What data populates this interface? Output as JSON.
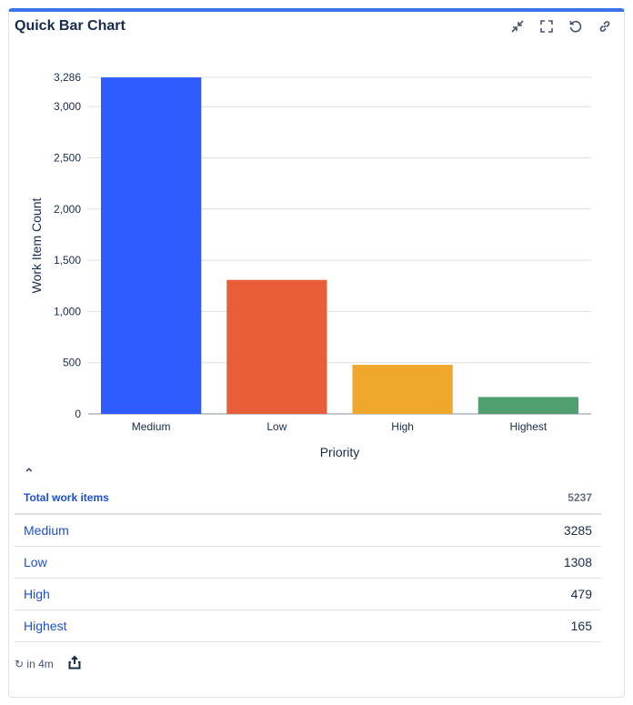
{
  "header": {
    "title": "Quick Bar Chart",
    "icons": [
      "collapse-icon",
      "fullscreen-icon",
      "refresh-icon",
      "link-icon"
    ]
  },
  "chart_data": {
    "type": "bar",
    "categories": [
      "Medium",
      "Low",
      "High",
      "Highest"
    ],
    "values": [
      3285,
      1308,
      479,
      165
    ],
    "colors": [
      "#2d5bff",
      "#e85e38",
      "#efa72c",
      "#4fa06e"
    ],
    "xlabel": "Priority",
    "ylabel": "Work Item Count",
    "ylim": [
      0,
      3286
    ],
    "yticks": [
      0,
      500,
      1000,
      1500,
      2000,
      2500,
      3000,
      3286
    ],
    "ytick_labels": [
      "0",
      "500",
      "1,000",
      "1,500",
      "2,000",
      "2,500",
      "3,000",
      "3,286"
    ],
    "grid": true
  },
  "table": {
    "total_label": "Total work items",
    "total_value": "5237",
    "rows": [
      {
        "label": "Medium",
        "value": "3285"
      },
      {
        "label": "Low",
        "value": "1308"
      },
      {
        "label": "High",
        "value": "479"
      },
      {
        "label": "Highest",
        "value": "165"
      }
    ]
  },
  "footer": {
    "refresh_text": "in 4m"
  }
}
